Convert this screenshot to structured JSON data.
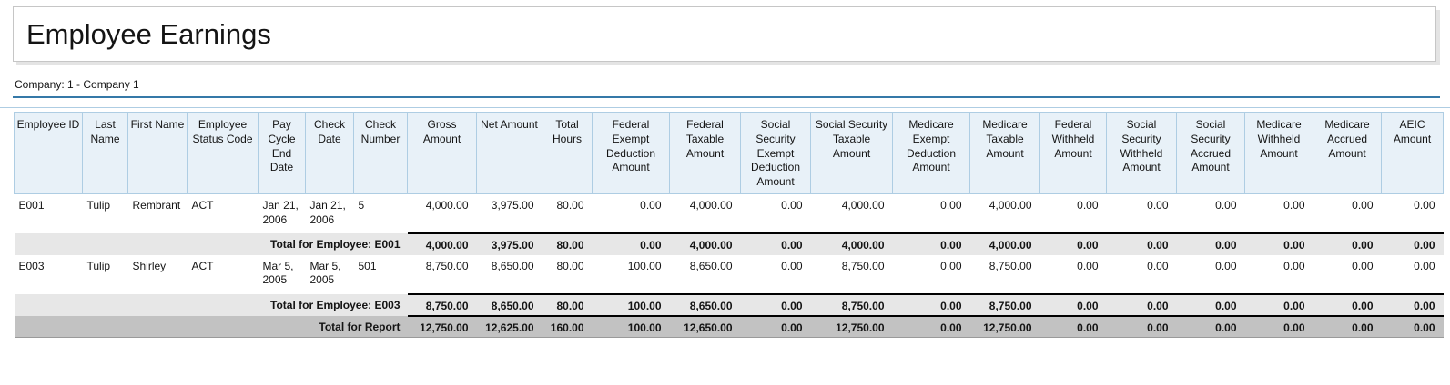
{
  "report": {
    "title": "Employee Earnings",
    "company_line": "Company: 1 - Company 1"
  },
  "colors": {
    "header_bg": "#e8f1f8",
    "header_border": "#aecde3",
    "employee_total_bg": "#e7e7e7",
    "report_total_bg": "#c2c2c2",
    "rule_blue": "#3579a8"
  },
  "table": {
    "columns": [
      {
        "id": "employee-id",
        "label": "Employee ID",
        "align": "left"
      },
      {
        "id": "last-name",
        "label": "Last Name",
        "align": "left"
      },
      {
        "id": "first-name",
        "label": "First Name",
        "align": "left"
      },
      {
        "id": "employee-status-code",
        "label": "Employee Status Code",
        "align": "left"
      },
      {
        "id": "pay-cycle-end-date",
        "label": "Pay Cycle End Date",
        "align": "left"
      },
      {
        "id": "check-date",
        "label": "Check Date",
        "align": "left"
      },
      {
        "id": "check-number",
        "label": "Check Number",
        "align": "left"
      },
      {
        "id": "gross-amount",
        "label": "Gross Amount",
        "align": "right"
      },
      {
        "id": "net-amount",
        "label": "Net Amount",
        "align": "right"
      },
      {
        "id": "total-hours",
        "label": "Total Hours",
        "align": "right"
      },
      {
        "id": "federal-exempt-deduction-amount",
        "label": "Federal Exempt Deduction Amount",
        "align": "right"
      },
      {
        "id": "federal-taxable-amount",
        "label": "Federal Taxable Amount",
        "align": "right"
      },
      {
        "id": "social-security-exempt-deduction-amount",
        "label": "Social Security Exempt Deduction Amount",
        "align": "right"
      },
      {
        "id": "social-security-taxable-amount",
        "label": "Social Security Taxable Amount",
        "align": "right"
      },
      {
        "id": "medicare-exempt-deduction-amount",
        "label": "Medicare Exempt Deduction Amount",
        "align": "right"
      },
      {
        "id": "medicare-taxable-amount",
        "label": "Medicare Taxable Amount",
        "align": "right"
      },
      {
        "id": "federal-withheld-amount",
        "label": "Federal Withheld Amount",
        "align": "right"
      },
      {
        "id": "social-security-withheld-amount",
        "label": "Social Security Withheld Amount",
        "align": "right"
      },
      {
        "id": "social-security-accrued-amount",
        "label": "Social Security Accrued Amount",
        "align": "right"
      },
      {
        "id": "medicare-withheld-amount",
        "label": "Medicare Withheld Amount",
        "align": "right"
      },
      {
        "id": "medicare-accrued-amount",
        "label": "Medicare Accrued Amount",
        "align": "right"
      },
      {
        "id": "aeic-amount",
        "label": "AEIC Amount",
        "align": "right"
      }
    ],
    "rows": [
      {
        "type": "detail",
        "cells": [
          "E001",
          "Tulip",
          "Rembrant",
          "ACT",
          "Jan 21, 2006",
          "Jan 21, 2006",
          "5",
          "4,000.00",
          "3,975.00",
          "80.00",
          "0.00",
          "4,000.00",
          "0.00",
          "4,000.00",
          "0.00",
          "4,000.00",
          "0.00",
          "0.00",
          "0.00",
          "0.00",
          "0.00",
          "0.00"
        ]
      },
      {
        "type": "employee_total",
        "label": "Total for Employee: E001",
        "values": [
          "4,000.00",
          "3,975.00",
          "80.00",
          "0.00",
          "4,000.00",
          "0.00",
          "4,000.00",
          "0.00",
          "4,000.00",
          "0.00",
          "0.00",
          "0.00",
          "0.00",
          "0.00",
          "0.00"
        ]
      },
      {
        "type": "detail",
        "cells": [
          "E003",
          "Tulip",
          "Shirley",
          "ACT",
          "Mar 5, 2005",
          "Mar 5, 2005",
          "501",
          "8,750.00",
          "8,650.00",
          "80.00",
          "100.00",
          "8,650.00",
          "0.00",
          "8,750.00",
          "0.00",
          "8,750.00",
          "0.00",
          "0.00",
          "0.00",
          "0.00",
          "0.00",
          "0.00"
        ]
      },
      {
        "type": "employee_total",
        "label": "Total for Employee: E003",
        "values": [
          "8,750.00",
          "8,650.00",
          "80.00",
          "100.00",
          "8,650.00",
          "0.00",
          "8,750.00",
          "0.00",
          "8,750.00",
          "0.00",
          "0.00",
          "0.00",
          "0.00",
          "0.00",
          "0.00"
        ]
      },
      {
        "type": "report_total",
        "label": "Total for Report",
        "values": [
          "12,750.00",
          "12,625.00",
          "160.00",
          "100.00",
          "12,650.00",
          "0.00",
          "12,750.00",
          "0.00",
          "12,750.00",
          "0.00",
          "0.00",
          "0.00",
          "0.00",
          "0.00",
          "0.00"
        ]
      }
    ]
  }
}
